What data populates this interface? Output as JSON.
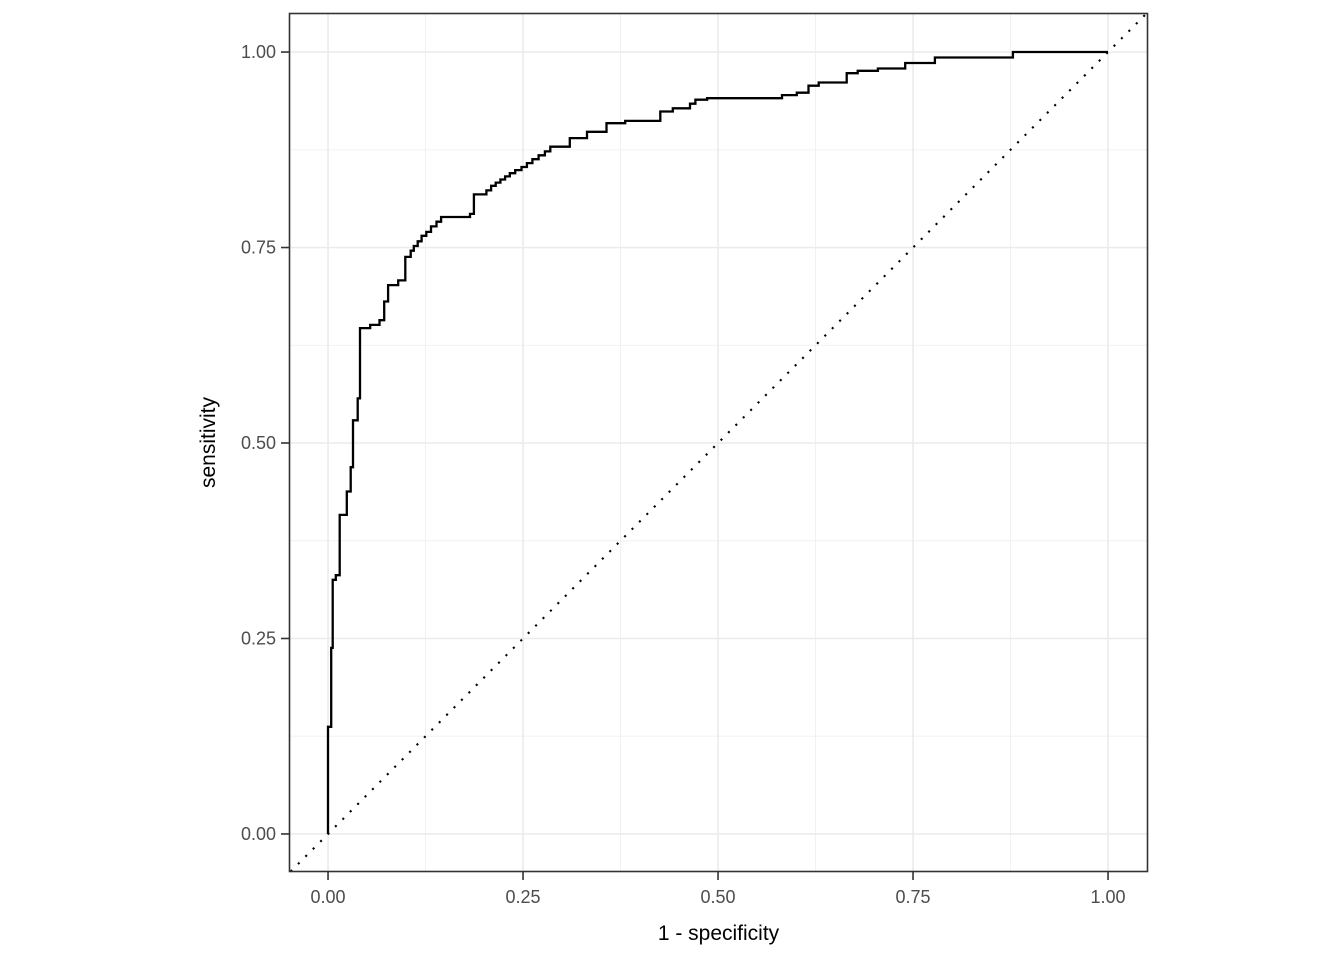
{
  "figure": {
    "background": "#ffffff"
  },
  "colors": {
    "panel_background": "#ffffff",
    "panel_border": "#333333",
    "grid_major": "#ebebeb",
    "grid_minor": "#f0f0f0",
    "tick_mark": "#333333",
    "tick_label": "#4d4d4d",
    "axis_title": "#000000",
    "curve": "#000000",
    "reference_line": "#000000"
  },
  "chart_data": {
    "type": "line",
    "subtype": "roc-step-curve",
    "title": "",
    "xlabel": "1 - specificity",
    "ylabel": "sensitivity",
    "xlim": [
      -0.0494,
      1.0506
    ],
    "ylim": [
      -0.048,
      1.0493
    ],
    "grid": "major+minor",
    "legend_position": "none",
    "x_ticks": {
      "values": [
        0,
        0.25,
        0.5,
        0.75,
        1
      ],
      "labels": [
        "0.00",
        "0.25",
        "0.50",
        "0.75",
        "1.00"
      ]
    },
    "y_ticks": {
      "values": [
        0,
        0.25,
        0.5,
        0.75,
        1
      ],
      "labels": [
        "0.00",
        "0.25",
        "0.50",
        "0.75",
        "1.00"
      ]
    },
    "reference_line": {
      "slope": 1,
      "intercept": 0,
      "linetype": "dotted",
      "color": "#000000"
    },
    "series": [
      {
        "name": "ROC curve",
        "color": "#000000",
        "step": true,
        "points": [
          [
            0.0,
            0.0
          ],
          [
            0.0,
            0.137
          ],
          [
            0.004,
            0.137
          ],
          [
            0.004,
            0.238
          ],
          [
            0.006,
            0.238
          ],
          [
            0.006,
            0.325
          ],
          [
            0.01,
            0.325
          ],
          [
            0.01,
            0.331
          ],
          [
            0.015,
            0.331
          ],
          [
            0.015,
            0.408
          ],
          [
            0.024,
            0.408
          ],
          [
            0.024,
            0.438
          ],
          [
            0.029,
            0.438
          ],
          [
            0.029,
            0.469
          ],
          [
            0.032,
            0.469
          ],
          [
            0.032,
            0.529
          ],
          [
            0.038,
            0.529
          ],
          [
            0.038,
            0.557
          ],
          [
            0.041,
            0.557
          ],
          [
            0.041,
            0.647
          ],
          [
            0.054,
            0.647
          ],
          [
            0.054,
            0.651
          ],
          [
            0.066,
            0.651
          ],
          [
            0.066,
            0.657
          ],
          [
            0.072,
            0.657
          ],
          [
            0.072,
            0.681
          ],
          [
            0.077,
            0.681
          ],
          [
            0.077,
            0.702
          ],
          [
            0.09,
            0.702
          ],
          [
            0.09,
            0.708
          ],
          [
            0.099,
            0.708
          ],
          [
            0.099,
            0.738
          ],
          [
            0.106,
            0.738
          ],
          [
            0.106,
            0.746
          ],
          [
            0.11,
            0.746
          ],
          [
            0.11,
            0.752
          ],
          [
            0.115,
            0.752
          ],
          [
            0.115,
            0.758
          ],
          [
            0.12,
            0.758
          ],
          [
            0.12,
            0.765
          ],
          [
            0.126,
            0.765
          ],
          [
            0.126,
            0.77
          ],
          [
            0.132,
            0.77
          ],
          [
            0.132,
            0.777
          ],
          [
            0.139,
            0.777
          ],
          [
            0.139,
            0.783
          ],
          [
            0.145,
            0.783
          ],
          [
            0.145,
            0.789
          ],
          [
            0.15,
            0.789
          ],
          [
            0.182,
            0.789
          ],
          [
            0.182,
            0.793
          ],
          [
            0.187,
            0.793
          ],
          [
            0.187,
            0.818
          ],
          [
            0.203,
            0.818
          ],
          [
            0.203,
            0.823
          ],
          [
            0.209,
            0.823
          ],
          [
            0.209,
            0.829
          ],
          [
            0.215,
            0.829
          ],
          [
            0.215,
            0.833
          ],
          [
            0.221,
            0.833
          ],
          [
            0.221,
            0.837
          ],
          [
            0.227,
            0.837
          ],
          [
            0.227,
            0.841
          ],
          [
            0.233,
            0.841
          ],
          [
            0.233,
            0.845
          ],
          [
            0.24,
            0.845
          ],
          [
            0.24,
            0.849
          ],
          [
            0.248,
            0.849
          ],
          [
            0.248,
            0.853
          ],
          [
            0.255,
            0.853
          ],
          [
            0.255,
            0.858
          ],
          [
            0.262,
            0.858
          ],
          [
            0.262,
            0.863
          ],
          [
            0.27,
            0.863
          ],
          [
            0.27,
            0.868
          ],
          [
            0.278,
            0.868
          ],
          [
            0.278,
            0.873
          ],
          [
            0.285,
            0.873
          ],
          [
            0.285,
            0.879
          ],
          [
            0.31,
            0.879
          ],
          [
            0.31,
            0.89
          ],
          [
            0.332,
            0.89
          ],
          [
            0.332,
            0.898
          ],
          [
            0.357,
            0.898
          ],
          [
            0.357,
            0.909
          ],
          [
            0.381,
            0.909
          ],
          [
            0.381,
            0.912
          ],
          [
            0.426,
            0.912
          ],
          [
            0.426,
            0.924
          ],
          [
            0.442,
            0.924
          ],
          [
            0.442,
            0.928
          ],
          [
            0.464,
            0.928
          ],
          [
            0.464,
            0.934
          ],
          [
            0.471,
            0.934
          ],
          [
            0.471,
            0.939
          ],
          [
            0.486,
            0.939
          ],
          [
            0.486,
            0.941
          ],
          [
            0.582,
            0.941
          ],
          [
            0.582,
            0.945
          ],
          [
            0.601,
            0.945
          ],
          [
            0.601,
            0.948
          ],
          [
            0.616,
            0.948
          ],
          [
            0.616,
            0.957
          ],
          [
            0.629,
            0.957
          ],
          [
            0.629,
            0.961
          ],
          [
            0.665,
            0.961
          ],
          [
            0.665,
            0.973
          ],
          [
            0.679,
            0.973
          ],
          [
            0.679,
            0.976
          ],
          [
            0.705,
            0.976
          ],
          [
            0.705,
            0.979
          ],
          [
            0.74,
            0.979
          ],
          [
            0.74,
            0.986
          ],
          [
            0.778,
            0.986
          ],
          [
            0.778,
            0.993
          ],
          [
            0.878,
            0.993
          ],
          [
            0.878,
            1.0
          ],
          [
            1.0,
            1.0
          ]
        ]
      }
    ]
  }
}
